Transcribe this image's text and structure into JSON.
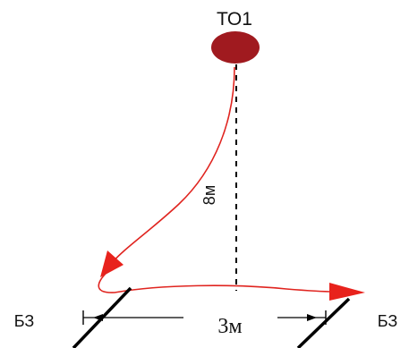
{
  "labels": {
    "target": "ТО1",
    "vertical_distance": "8м",
    "horizontal_distance": "3м",
    "left_marker": "БЗ",
    "right_marker": "БЗ"
  },
  "colors": {
    "target_fill": "#a01a1f",
    "path_stroke": "#e0241f",
    "arrow_fill": "#e8221c",
    "line_dark": "#000000"
  }
}
